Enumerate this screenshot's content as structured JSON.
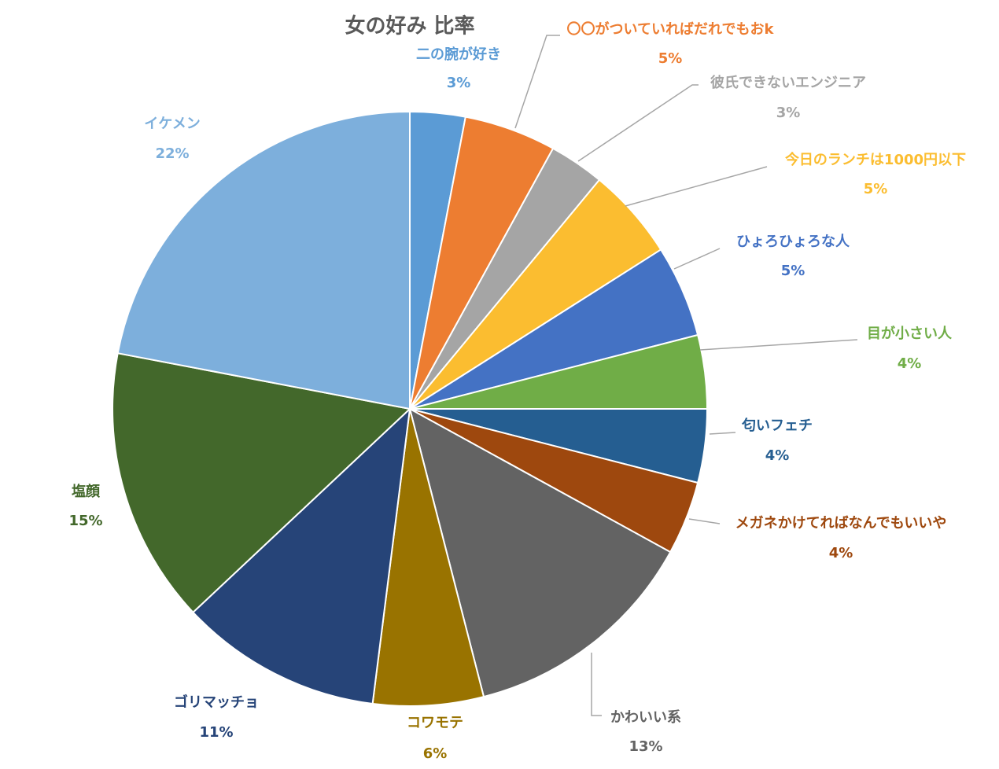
{
  "chart_data": {
    "type": "pie",
    "title": "女の好み 比率",
    "categories": [
      "二の腕が好き",
      "〇〇がついていればだれでもおk",
      "彼氏できないエンジニア",
      "今日のランチは1000円以下",
      "ひょろひょろな人",
      "目が小さい人",
      "匂いフェチ",
      "メガネかけてればなんでもいいや",
      "かわいい系",
      "コワモテ",
      "ゴリマッチョ",
      "塩顔",
      "イケメン"
    ],
    "values": [
      3,
      5,
      3,
      5,
      5,
      4,
      4,
      4,
      13,
      6,
      11,
      15,
      22
    ],
    "value_labels": [
      "3%",
      "5%",
      "3%",
      "5%",
      "5%",
      "4%",
      "4%",
      "4%",
      "13%",
      "6%",
      "11%",
      "15%",
      "22%"
    ],
    "colors": [
      "#5b9bd5",
      "#ed7d31",
      "#a5a5a5",
      "#fbbd30",
      "#4472c4",
      "#70ad47",
      "#255e91",
      "#9e480e",
      "#636363",
      "#997300",
      "#264478",
      "#43682b",
      "#7dafdc"
    ]
  }
}
